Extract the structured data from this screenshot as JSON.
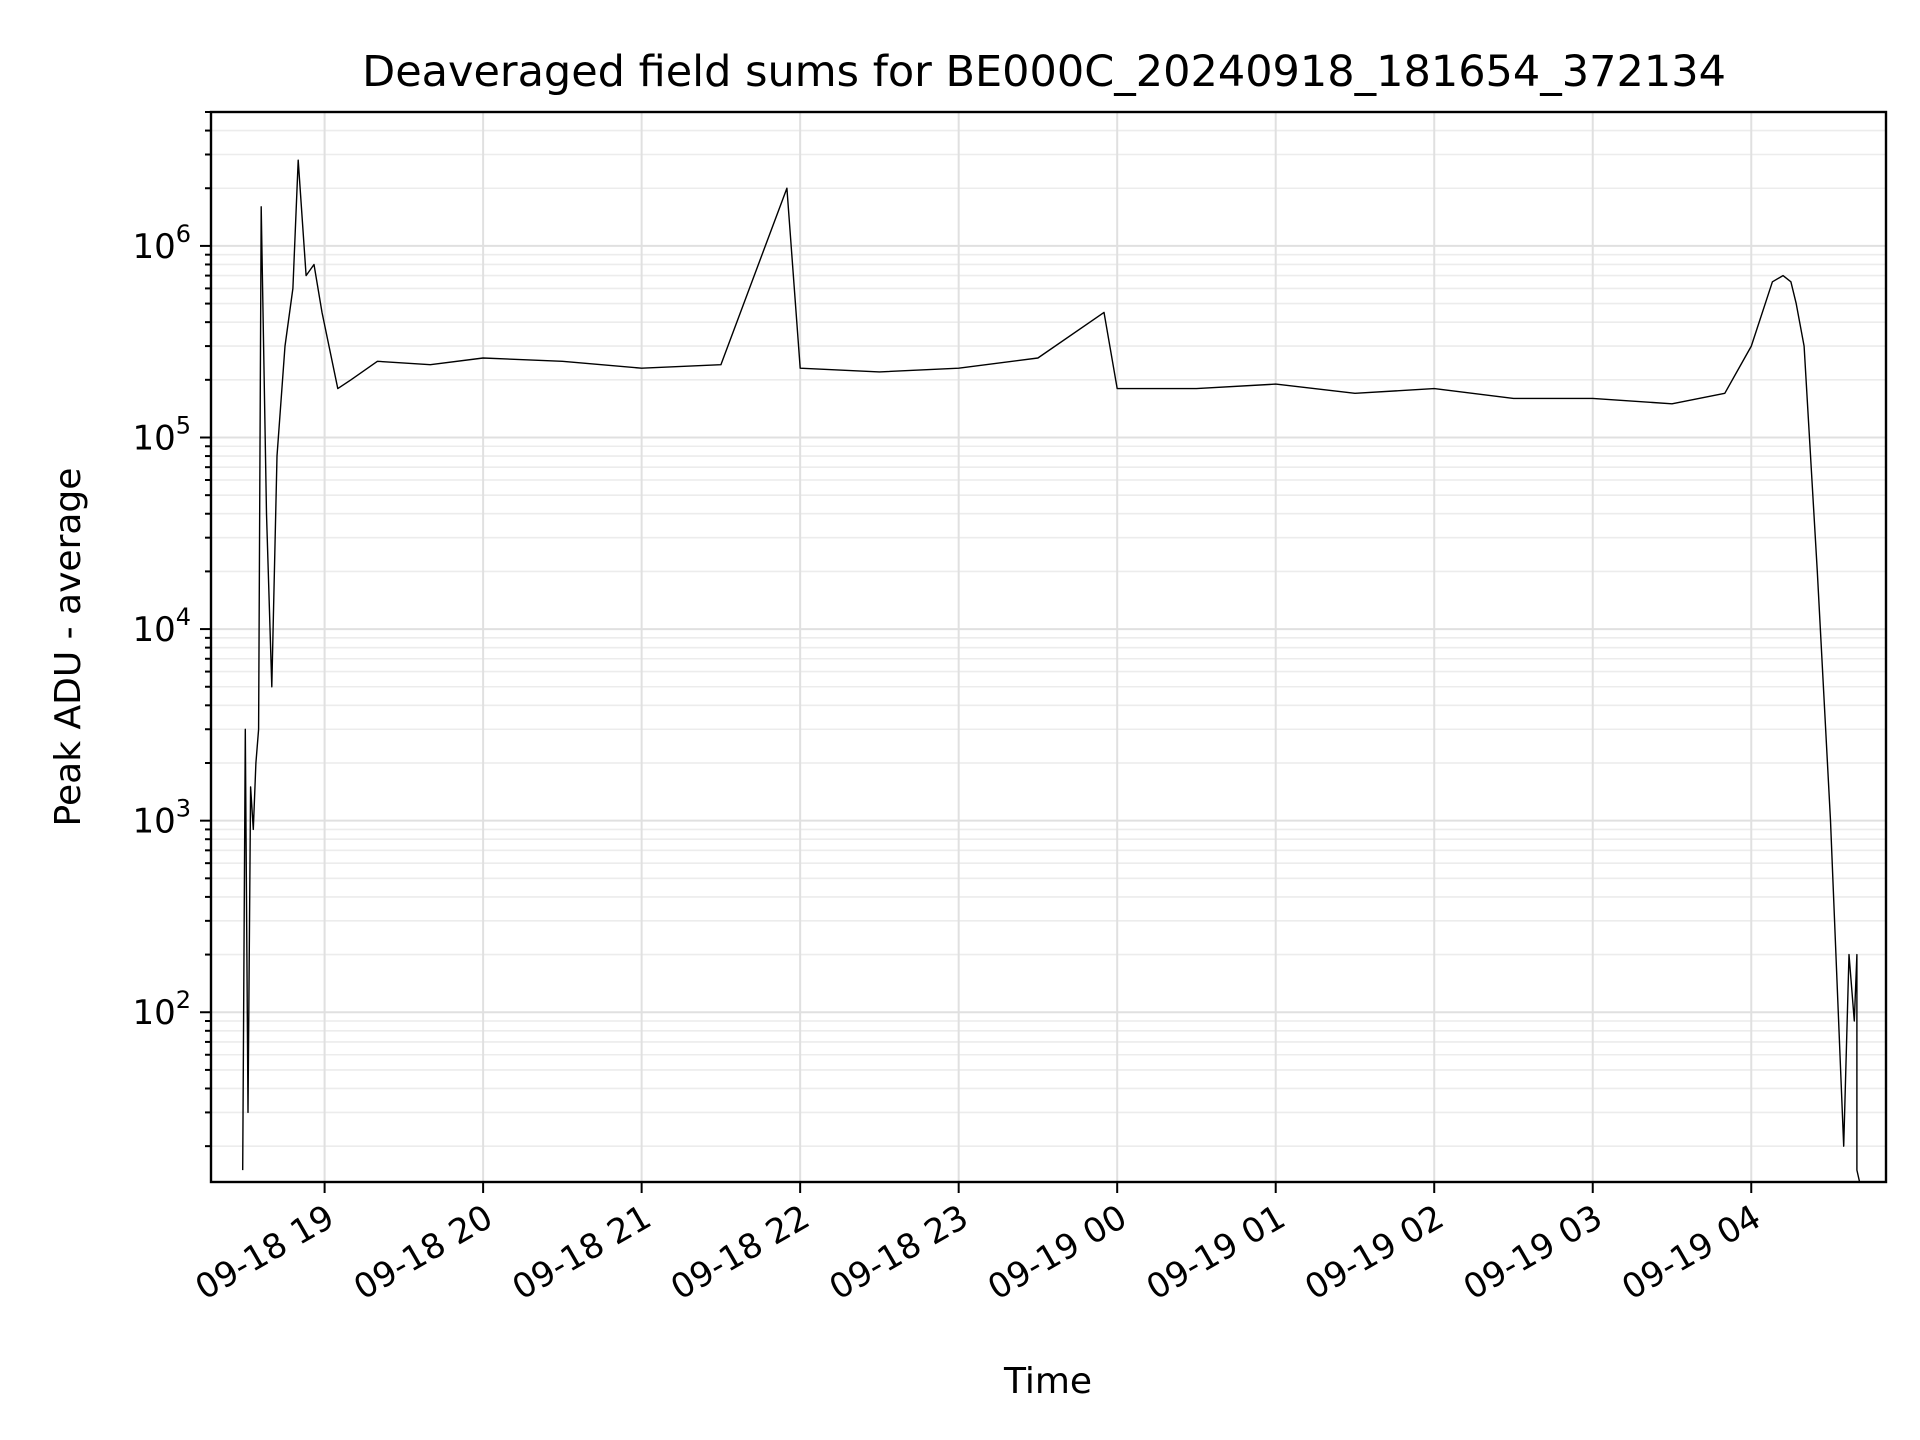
{
  "chart_data": {
    "type": "line",
    "title": "Deaveraged field sums for BE000C_20240918_181654_372134",
    "xlabel": "Time",
    "ylabel": "Peak ADU - average",
    "yscale": "log",
    "ylim": [
      13,
      5000000
    ],
    "xlim": [
      "2024-09-18 18:17",
      "2024-09-19 04:51"
    ],
    "grid": true,
    "line_color": "#000000",
    "x_ticks": [
      {
        "label": "09-18 19",
        "value": "2024-09-18 19:00"
      },
      {
        "label": "09-18 20",
        "value": "2024-09-18 20:00"
      },
      {
        "label": "09-18 21",
        "value": "2024-09-18 21:00"
      },
      {
        "label": "09-18 22",
        "value": "2024-09-18 22:00"
      },
      {
        "label": "09-18 23",
        "value": "2024-09-18 23:00"
      },
      {
        "label": "09-19 00",
        "value": "2024-09-19 00:00"
      },
      {
        "label": "09-19 01",
        "value": "2024-09-19 01:00"
      },
      {
        "label": "09-19 02",
        "value": "2024-09-19 02:00"
      },
      {
        "label": "09-19 03",
        "value": "2024-09-19 03:00"
      },
      {
        "label": "09-19 04",
        "value": "2024-09-19 04:00"
      }
    ],
    "y_ticks": [
      {
        "base": "10",
        "exp": "2",
        "value": 100
      },
      {
        "base": "10",
        "exp": "3",
        "value": 1000
      },
      {
        "base": "10",
        "exp": "4",
        "value": 10000
      },
      {
        "base": "10",
        "exp": "5",
        "value": 100000
      },
      {
        "base": "10",
        "exp": "6",
        "value": 1000000
      }
    ],
    "series": [
      {
        "x": [
          "2024-09-18 18:29",
          "2024-09-18 18:30",
          "2024-09-18 18:31",
          "2024-09-18 18:32",
          "2024-09-18 18:33",
          "2024-09-18 18:34",
          "2024-09-18 18:35",
          "2024-09-18 18:36",
          "2024-09-18 18:38",
          "2024-09-18 18:40",
          "2024-09-18 18:42",
          "2024-09-18 18:45",
          "2024-09-18 18:48",
          "2024-09-18 18:50",
          "2024-09-18 18:53",
          "2024-09-18 18:56",
          "2024-09-18 18:59",
          "2024-09-18 19:05",
          "2024-09-18 19:10",
          "2024-09-18 19:20",
          "2024-09-18 19:40",
          "2024-09-18 20:00",
          "2024-09-18 20:30",
          "2024-09-18 21:00",
          "2024-09-18 21:30",
          "2024-09-18 21:55",
          "2024-09-18 22:00",
          "2024-09-18 22:30",
          "2024-09-18 23:00",
          "2024-09-18 23:30",
          "2024-09-18 23:55",
          "2024-09-19 00:00",
          "2024-09-19 00:30",
          "2024-09-19 01:00",
          "2024-09-19 01:30",
          "2024-09-19 02:00",
          "2024-09-19 02:30",
          "2024-09-19 03:00",
          "2024-09-19 03:30",
          "2024-09-19 03:50",
          "2024-09-19 04:00",
          "2024-09-19 04:08",
          "2024-09-19 04:12",
          "2024-09-19 04:15",
          "2024-09-19 04:17",
          "2024-09-19 04:20",
          "2024-09-19 04:25",
          "2024-09-19 04:30",
          "2024-09-19 04:35",
          "2024-09-19 04:37",
          "2024-09-19 04:39",
          "2024-09-19 04:40",
          "2024-09-19 04:40",
          "2024-09-19 04:41"
        ],
        "values": [
          15,
          3000,
          30,
          1500,
          900,
          2000,
          3000,
          1600000,
          40000,
          5000,
          80000,
          300000,
          600000,
          2800000,
          700000,
          800000,
          450000,
          180000,
          200000,
          250000,
          240000,
          260000,
          250000,
          230000,
          240000,
          2000000,
          230000,
          220000,
          230000,
          260000,
          450000,
          180000,
          180000,
          190000,
          170000,
          180000,
          160000,
          160000,
          150000,
          170000,
          300000,
          650000,
          700000,
          650000,
          500000,
          300000,
          20000,
          1000,
          20,
          200,
          90,
          200,
          15,
          13
        ]
      }
    ]
  }
}
